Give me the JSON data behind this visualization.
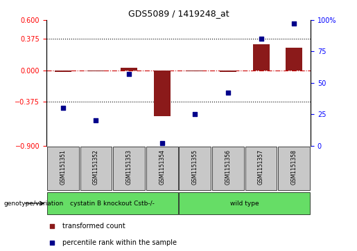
{
  "title": "GDS5089 / 1419248_at",
  "samples": [
    "GSM1151351",
    "GSM1151352",
    "GSM1151353",
    "GSM1151354",
    "GSM1151355",
    "GSM1151356",
    "GSM1151357",
    "GSM1151358"
  ],
  "transformed_count": [
    -0.02,
    -0.01,
    0.03,
    -0.55,
    -0.01,
    -0.02,
    0.31,
    0.27
  ],
  "percentile_rank": [
    30,
    20,
    57,
    2,
    25,
    42,
    85,
    97
  ],
  "red_bar_color": "#8B1A1A",
  "blue_dot_color": "#00008B",
  "left_ylim": [
    -0.9,
    0.6
  ],
  "right_ylim": [
    0,
    100
  ],
  "left_yticks": [
    -0.9,
    -0.375,
    0,
    0.375,
    0.6
  ],
  "right_yticks": [
    0,
    25,
    50,
    75,
    100
  ],
  "right_yticklabels": [
    "0",
    "25",
    "50",
    "75",
    "100%"
  ],
  "hline_y": [
    0.375,
    -0.375
  ],
  "groups": [
    {
      "label": "cystatin B knockout Cstb-/-",
      "samples": [
        0,
        1,
        2,
        3
      ],
      "color": "#66DD66"
    },
    {
      "label": "wild type",
      "samples": [
        4,
        5,
        6,
        7
      ],
      "color": "#66DD66"
    }
  ],
  "genotype_label": "genotype/variation",
  "legend_red": "transformed count",
  "legend_blue": "percentile rank within the sample",
  "bar_width": 0.5,
  "zero_line_color": "#CC0000",
  "label_box_color": "#C8C8C8"
}
